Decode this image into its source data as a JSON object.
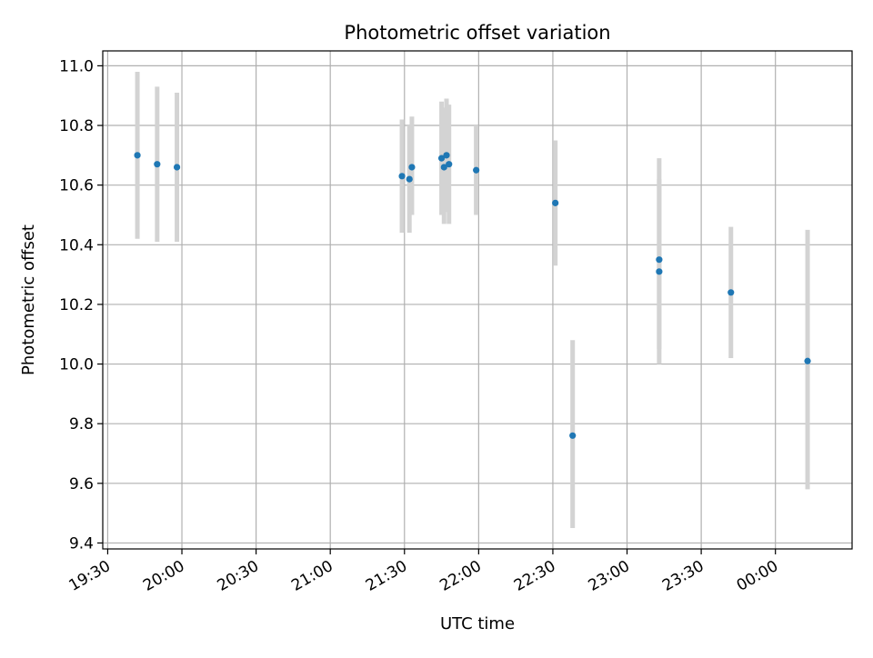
{
  "chart_data": {
    "type": "scatter",
    "title": "Photometric offset variation",
    "xlabel": "UTC time",
    "ylabel": "Photometric offset",
    "x_axis_kind": "time",
    "xlim": [
      "19:28",
      "00:31"
    ],
    "ylim": [
      9.38,
      11.05
    ],
    "xticks": [
      "19:30",
      "20:00",
      "20:30",
      "21:00",
      "21:30",
      "22:00",
      "22:30",
      "23:00",
      "23:30",
      "00:00"
    ],
    "yticks": [
      9.4,
      9.6,
      9.8,
      10.0,
      10.2,
      10.4,
      10.6,
      10.8,
      11.0
    ],
    "ytick_labels": [
      "9.4",
      "9.6",
      "9.8",
      "10.0",
      "10.2",
      "10.4",
      "10.6",
      "10.8",
      "11.0"
    ],
    "grid": true,
    "legend": "none",
    "colors": {
      "points": "#1f77b4",
      "errorbars": "#d3d3d3",
      "grid": "#b0b0b0"
    },
    "points": [
      {
        "time": "19:42",
        "y": 10.7,
        "ylow": 10.42,
        "yhigh": 10.98
      },
      {
        "time": "19:50",
        "y": 10.67,
        "ylow": 10.41,
        "yhigh": 10.93
      },
      {
        "time": "19:58",
        "y": 10.66,
        "ylow": 10.41,
        "yhigh": 10.91
      },
      {
        "time": "21:29",
        "y": 10.63,
        "ylow": 10.44,
        "yhigh": 10.82
      },
      {
        "time": "21:32",
        "y": 10.62,
        "ylow": 10.44,
        "yhigh": 10.8
      },
      {
        "time": "21:33",
        "y": 10.66,
        "ylow": 10.5,
        "yhigh": 10.83
      },
      {
        "time": "21:45",
        "y": 10.69,
        "ylow": 10.5,
        "yhigh": 10.88
      },
      {
        "time": "21:46",
        "y": 10.66,
        "ylow": 10.47,
        "yhigh": 10.86
      },
      {
        "time": "21:47",
        "y": 10.7,
        "ylow": 10.51,
        "yhigh": 10.89
      },
      {
        "time": "21:48",
        "y": 10.67,
        "ylow": 10.47,
        "yhigh": 10.87
      },
      {
        "time": "21:59",
        "y": 10.65,
        "ylow": 10.5,
        "yhigh": 10.8
      },
      {
        "time": "22:31",
        "y": 10.54,
        "ylow": 10.33,
        "yhigh": 10.75
      },
      {
        "time": "22:38",
        "y": 9.76,
        "ylow": 9.45,
        "yhigh": 10.08
      },
      {
        "time": "23:13",
        "y": 10.35,
        "ylow": 10.05,
        "yhigh": 10.69
      },
      {
        "time": "23:13",
        "y": 10.31,
        "ylow": 10.0,
        "yhigh": 10.62
      },
      {
        "time": "23:42",
        "y": 10.24,
        "ylow": 10.02,
        "yhigh": 10.46
      },
      {
        "time": "00:13",
        "y": 10.01,
        "ylow": 9.58,
        "yhigh": 10.45
      }
    ]
  }
}
